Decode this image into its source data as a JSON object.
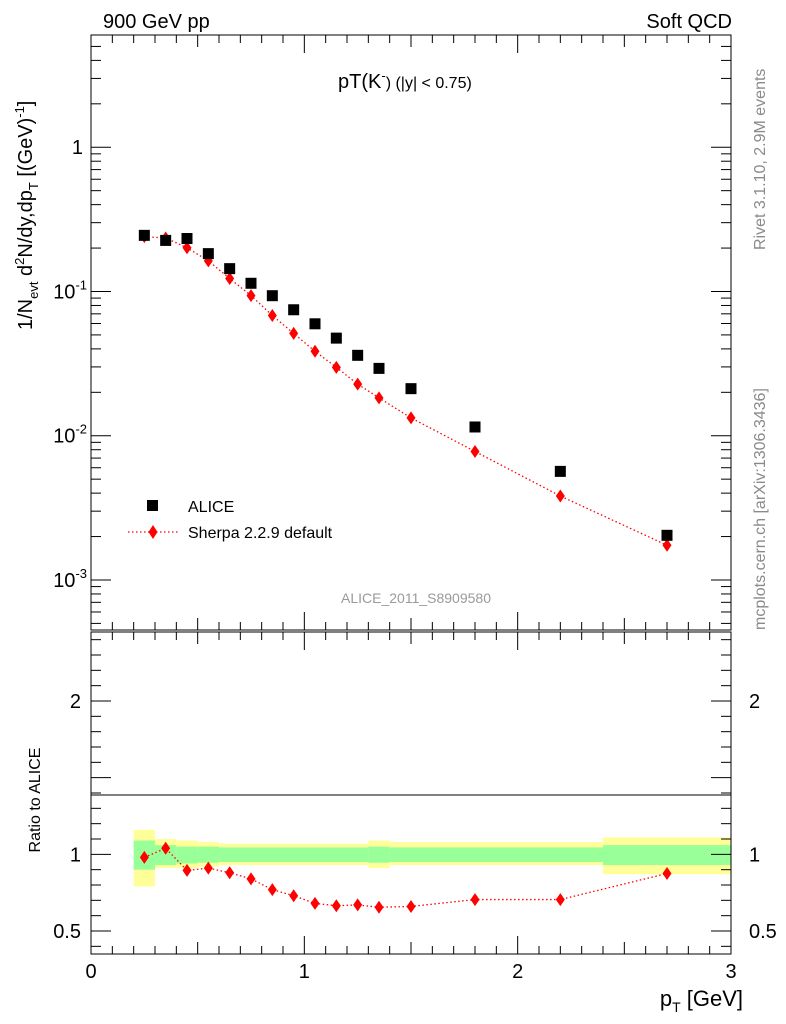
{
  "header": {
    "left": "900 GeV pp",
    "right": "Soft QCD"
  },
  "side_labels": {
    "rivet": "Rivet 3.1.10,  2.9M events",
    "mcplots": "mcplots.cern.ch [arXiv:1306.3436]"
  },
  "analysis_label": "ALICE_2011_S8909580",
  "chart_data": [
    {
      "type": "scatter",
      "panel": "main",
      "title_main": "pT(K",
      "title_sup": "-",
      "title_rest": ") (|y| < 0.75)",
      "ylabel": "1/N",
      "ylabel_sub1": "evt",
      "ylabel_mid": " d",
      "ylabel_sup1": "2",
      "ylabel_mid2": "N/dy,dp",
      "ylabel_sub2": "T",
      "ylabel_tail": " [(GeV)",
      "ylabel_sup2": "-1",
      "ylabel_end": "]",
      "yscale": "log",
      "xlim": [
        0,
        3
      ],
      "ylim": [
        0.00045,
        6
      ],
      "yticks": [
        {
          "value": 1,
          "mantissa": "1",
          "exp": ""
        },
        {
          "value": 0.1,
          "mantissa": "10",
          "exp": "-1"
        },
        {
          "value": 0.01,
          "mantissa": "10",
          "exp": "-2"
        },
        {
          "value": 0.001,
          "mantissa": "10",
          "exp": "-3"
        }
      ],
      "legend_position": "lower-left",
      "series": [
        {
          "name": "ALICE",
          "color": "#000000",
          "marker": "square",
          "x": [
            0.25,
            0.35,
            0.45,
            0.55,
            0.65,
            0.75,
            0.85,
            0.95,
            1.05,
            1.15,
            1.25,
            1.35,
            1.5,
            1.8,
            2.2,
            2.7
          ],
          "y": [
            0.245,
            0.226,
            0.233,
            0.183,
            0.144,
            0.114,
            0.0935,
            0.0747,
            0.0597,
            0.0475,
            0.0361,
            0.0293,
            0.0212,
            0.0115,
            0.00566,
            0.00204
          ]
        },
        {
          "name": "Sherpa 2.2.9 default",
          "color": "#ff0000",
          "marker": "diamond",
          "line": "dotted",
          "x": [
            0.25,
            0.35,
            0.45,
            0.55,
            0.65,
            0.75,
            0.85,
            0.95,
            1.05,
            1.15,
            1.25,
            1.35,
            1.5,
            1.8,
            2.2,
            2.7
          ],
          "y": [
            0.24,
            0.235,
            0.201,
            0.163,
            0.123,
            0.0937,
            0.0681,
            0.0512,
            0.0385,
            0.0298,
            0.0228,
            0.0183,
            0.0133,
            0.00778,
            0.00382,
            0.00174
          ]
        }
      ]
    },
    {
      "type": "line",
      "panel": "ratio",
      "ylabel": "Ratio to ALICE",
      "xlabel": "p",
      "xlabel_sub": "T",
      "xlabel_unit": " [GeV]",
      "xlim": [
        0,
        3
      ],
      "ylim": [
        0.35,
        2.45
      ],
      "xticks": [
        "0",
        "1",
        "2",
        "3"
      ],
      "yticks": [
        "0.5",
        "1",
        "2"
      ],
      "ytick_values": [
        0.5,
        1,
        2
      ],
      "bands": {
        "inner_color": "#99ff99",
        "outer_color": "#ffff99",
        "bins": [
          {
            "lo": 0.2,
            "hi": 0.3,
            "inner": [
              0.9,
              1.09
            ],
            "outer": [
              0.79,
              1.16
            ]
          },
          {
            "lo": 0.3,
            "hi": 0.4,
            "inner": [
              0.93,
              1.06
            ],
            "outer": [
              0.91,
              1.1
            ]
          },
          {
            "lo": 0.4,
            "hi": 0.5,
            "inner": [
              0.94,
              1.05
            ],
            "outer": [
              0.91,
              1.09
            ]
          },
          {
            "lo": 0.5,
            "hi": 0.6,
            "inner": [
              0.945,
              1.05
            ],
            "outer": [
              0.92,
              1.08
            ]
          },
          {
            "lo": 0.6,
            "hi": 1.3,
            "inner": [
              0.95,
              1.045
            ],
            "outer": [
              0.93,
              1.07
            ]
          },
          {
            "lo": 1.3,
            "hi": 1.4,
            "inner": [
              0.945,
              1.05
            ],
            "outer": [
              0.91,
              1.09
            ]
          },
          {
            "lo": 1.4,
            "hi": 2.4,
            "inner": [
              0.95,
              1.045
            ],
            "outer": [
              0.93,
              1.08
            ]
          },
          {
            "lo": 2.4,
            "hi": 3.0,
            "inner": [
              0.93,
              1.06
            ],
            "outer": [
              0.87,
              1.11
            ]
          }
        ]
      },
      "series": [
        {
          "name": "Sherpa 2.2.9 default",
          "color": "#ff0000",
          "marker": "diamond",
          "line": "dotted",
          "x": [
            0.25,
            0.35,
            0.45,
            0.55,
            0.65,
            0.75,
            0.85,
            0.95,
            1.05,
            1.15,
            1.25,
            1.35,
            1.5,
            1.8,
            2.2,
            2.7
          ],
          "y": [
            0.98,
            1.04,
            0.895,
            0.91,
            0.88,
            0.84,
            0.77,
            0.73,
            0.68,
            0.665,
            0.67,
            0.655,
            0.66,
            0.705,
            0.705,
            0.875
          ]
        }
      ]
    }
  ]
}
